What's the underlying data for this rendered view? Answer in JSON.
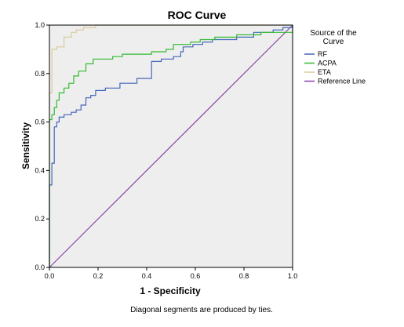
{
  "chart_data": {
    "type": "line",
    "title": "ROC Curve",
    "xlabel": "1 - Specificity",
    "ylabel": "Sensitivity",
    "xlim": [
      0,
      1
    ],
    "ylim": [
      0,
      1
    ],
    "x_ticks": [
      "0.0",
      "0.2",
      "0.4",
      "0.6",
      "0.8",
      "1.0"
    ],
    "y_ticks": [
      "0.0",
      "0.2",
      "0.4",
      "0.6",
      "0.8",
      "1.0"
    ],
    "grid": false,
    "legend": {
      "title": "Source of the Curve",
      "placement": "right"
    },
    "footnote": "Diagonal segments are produced by ties.",
    "series": [
      {
        "name": "RF",
        "color": "#4466bb",
        "points": [
          [
            0.0,
            0.0
          ],
          [
            0.0,
            0.34
          ],
          [
            0.01,
            0.34
          ],
          [
            0.01,
            0.43
          ],
          [
            0.02,
            0.43
          ],
          [
            0.02,
            0.58
          ],
          [
            0.03,
            0.58
          ],
          [
            0.03,
            0.6
          ],
          [
            0.04,
            0.6
          ],
          [
            0.04,
            0.62
          ],
          [
            0.06,
            0.62
          ],
          [
            0.06,
            0.63
          ],
          [
            0.09,
            0.63
          ],
          [
            0.09,
            0.64
          ],
          [
            0.11,
            0.64
          ],
          [
            0.11,
            0.65
          ],
          [
            0.13,
            0.65
          ],
          [
            0.13,
            0.67
          ],
          [
            0.15,
            0.67
          ],
          [
            0.15,
            0.7
          ],
          [
            0.17,
            0.7
          ],
          [
            0.17,
            0.71
          ],
          [
            0.19,
            0.71
          ],
          [
            0.19,
            0.73
          ],
          [
            0.23,
            0.73
          ],
          [
            0.23,
            0.74
          ],
          [
            0.29,
            0.74
          ],
          [
            0.29,
            0.76
          ],
          [
            0.36,
            0.76
          ],
          [
            0.36,
            0.78
          ],
          [
            0.42,
            0.78
          ],
          [
            0.42,
            0.85
          ],
          [
            0.46,
            0.85
          ],
          [
            0.46,
            0.86
          ],
          [
            0.51,
            0.86
          ],
          [
            0.51,
            0.87
          ],
          [
            0.54,
            0.87
          ],
          [
            0.54,
            0.89
          ],
          [
            0.55,
            0.89
          ],
          [
            0.55,
            0.91
          ],
          [
            0.59,
            0.91
          ],
          [
            0.59,
            0.92
          ],
          [
            0.63,
            0.92
          ],
          [
            0.63,
            0.93
          ],
          [
            0.67,
            0.93
          ],
          [
            0.67,
            0.94
          ],
          [
            0.77,
            0.94
          ],
          [
            0.77,
            0.95
          ],
          [
            0.84,
            0.95
          ],
          [
            0.84,
            0.97
          ],
          [
            0.92,
            0.97
          ],
          [
            0.92,
            0.98
          ],
          [
            0.96,
            0.98
          ],
          [
            0.96,
            0.99
          ],
          [
            1.0,
            0.99
          ],
          [
            1.0,
            1.0
          ]
        ]
      },
      {
        "name": "ACPA",
        "color": "#33bb33",
        "points": [
          [
            0.0,
            0.0
          ],
          [
            0.0,
            0.61
          ],
          [
            0.01,
            0.61
          ],
          [
            0.01,
            0.63
          ],
          [
            0.02,
            0.63
          ],
          [
            0.02,
            0.66
          ],
          [
            0.03,
            0.66
          ],
          [
            0.03,
            0.69
          ],
          [
            0.04,
            0.69
          ],
          [
            0.04,
            0.72
          ],
          [
            0.06,
            0.72
          ],
          [
            0.06,
            0.74
          ],
          [
            0.08,
            0.74
          ],
          [
            0.08,
            0.76
          ],
          [
            0.1,
            0.76
          ],
          [
            0.1,
            0.79
          ],
          [
            0.12,
            0.79
          ],
          [
            0.12,
            0.81
          ],
          [
            0.15,
            0.81
          ],
          [
            0.15,
            0.84
          ],
          [
            0.18,
            0.84
          ],
          [
            0.18,
            0.86
          ],
          [
            0.26,
            0.86
          ],
          [
            0.26,
            0.87
          ],
          [
            0.3,
            0.87
          ],
          [
            0.3,
            0.88
          ],
          [
            0.42,
            0.88
          ],
          [
            0.42,
            0.89
          ],
          [
            0.48,
            0.89
          ],
          [
            0.48,
            0.9
          ],
          [
            0.51,
            0.9
          ],
          [
            0.51,
            0.92
          ],
          [
            0.58,
            0.92
          ],
          [
            0.58,
            0.93
          ],
          [
            0.62,
            0.93
          ],
          [
            0.62,
            0.94
          ],
          [
            0.68,
            0.94
          ],
          [
            0.68,
            0.95
          ],
          [
            0.77,
            0.95
          ],
          [
            0.77,
            0.96
          ],
          [
            0.87,
            0.96
          ],
          [
            0.87,
            0.97
          ],
          [
            1.0,
            0.97
          ],
          [
            1.0,
            1.0
          ]
        ]
      },
      {
        "name": "ETA",
        "color": "#d8cc99",
        "points": [
          [
            0.0,
            0.0
          ],
          [
            0.0,
            0.72
          ],
          [
            0.01,
            0.72
          ],
          [
            0.01,
            0.9
          ],
          [
            0.03,
            0.9
          ],
          [
            0.03,
            0.91
          ],
          [
            0.06,
            0.91
          ],
          [
            0.06,
            0.95
          ],
          [
            0.09,
            0.95
          ],
          [
            0.09,
            0.97
          ],
          [
            0.11,
            0.97
          ],
          [
            0.11,
            0.98
          ],
          [
            0.14,
            0.98
          ],
          [
            0.14,
            0.99
          ],
          [
            0.19,
            0.99
          ],
          [
            0.19,
            1.0
          ],
          [
            1.0,
            1.0
          ]
        ]
      },
      {
        "name": "Reference Line",
        "color": "#8844aa",
        "points": [
          [
            0.0,
            0.0
          ],
          [
            1.0,
            1.0
          ]
        ]
      }
    ]
  }
}
